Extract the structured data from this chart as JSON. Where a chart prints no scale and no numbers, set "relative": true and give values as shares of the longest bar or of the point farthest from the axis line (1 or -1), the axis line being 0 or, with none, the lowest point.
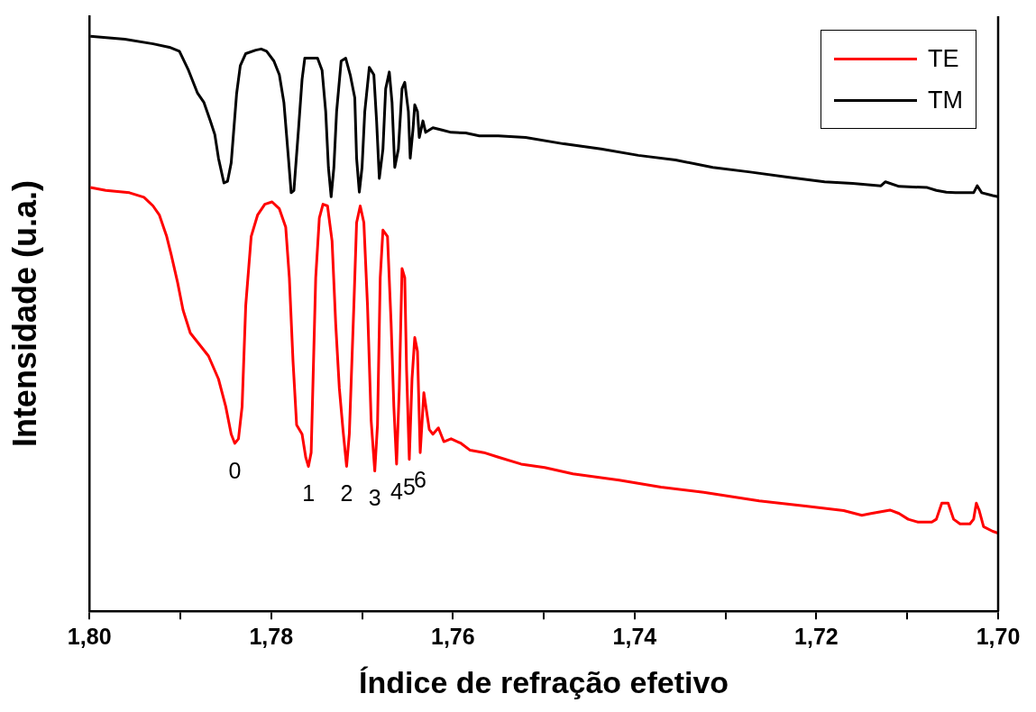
{
  "chart_data": {
    "type": "line",
    "xlabel": "Índice de refração efetivo",
    "ylabel": "Intensidade (u.a.)",
    "relative": true,
    "legend": "top right",
    "grid": false,
    "marker": "none",
    "line_style": "solid",
    "xlim": [
      1.8,
      1.7
    ],
    "xticks": [
      {
        "value": 1.8,
        "label": "1,80"
      },
      {
        "value": 1.79,
        "label": null
      },
      {
        "value": 1.78,
        "label": "1,78"
      },
      {
        "value": 1.77,
        "label": null
      },
      {
        "value": 1.76,
        "label": "1,76"
      },
      {
        "value": 1.75,
        "label": null
      },
      {
        "value": 1.74,
        "label": "1,74"
      },
      {
        "value": 1.73,
        "label": null
      },
      {
        "value": 1.72,
        "label": "1,72"
      },
      {
        "value": 1.71,
        "label": null
      },
      {
        "value": 1.7,
        "label": "1,70"
      }
    ],
    "series": [
      {
        "name": "TE",
        "color": "#ff0000",
        "x": [
          1.7999,
          1.7982,
          1.7956,
          1.794,
          1.793,
          1.7923,
          1.7915,
          1.791,
          1.7903,
          1.7897,
          1.7889,
          1.7877,
          1.7869,
          1.7858,
          1.785,
          1.7844,
          1.784,
          1.7836,
          1.7832,
          1.7828,
          1.7822,
          1.7815,
          1.7807,
          1.7799,
          1.7791,
          1.7784,
          1.778,
          1.7776,
          1.7772,
          1.7766,
          1.7762,
          1.7759,
          1.7756,
          1.7751,
          1.7747,
          1.7743,
          1.7738,
          1.7733,
          1.7729,
          1.7725,
          1.7721,
          1.7717,
          1.7714,
          1.7709,
          1.7706,
          1.7702,
          1.7698,
          1.7694,
          1.769,
          1.7686,
          1.7683,
          1.768,
          1.7677,
          1.7672,
          1.7668,
          1.7665,
          1.7662,
          1.7659,
          1.7656,
          1.7653,
          1.7651,
          1.7648,
          1.7645,
          1.7642,
          1.7639,
          1.7636,
          1.7632,
          1.7629,
          1.7626,
          1.7622,
          1.7616,
          1.761,
          1.7602,
          1.7591,
          1.7581,
          1.7566,
          1.755,
          1.7525,
          1.7499,
          1.7468,
          1.7417,
          1.7371,
          1.7324,
          1.7263,
          1.7212,
          1.717,
          1.715,
          1.714,
          1.7119,
          1.7109,
          1.7099,
          1.7088,
          1.7073,
          1.7068,
          1.7062,
          1.7055,
          1.7049,
          1.7042,
          1.7031,
          1.7027,
          1.7024,
          1.7021,
          1.7016,
          1.7006,
          1.7
        ],
        "values": [
          0.737,
          0.732,
          0.728,
          0.72,
          0.705,
          0.689,
          0.652,
          0.62,
          0.572,
          0.524,
          0.484,
          0.46,
          0.444,
          0.404,
          0.356,
          0.308,
          0.292,
          0.3,
          0.356,
          0.532,
          0.652,
          0.689,
          0.708,
          0.712,
          0.7,
          0.668,
          0.58,
          0.436,
          0.324,
          0.308,
          0.268,
          0.252,
          0.276,
          0.58,
          0.684,
          0.708,
          0.705,
          0.644,
          0.5,
          0.388,
          0.316,
          0.252,
          0.308,
          0.532,
          0.676,
          0.705,
          0.676,
          0.532,
          0.332,
          0.244,
          0.324,
          0.58,
          0.663,
          0.652,
          0.5,
          0.356,
          0.256,
          0.388,
          0.596,
          0.58,
          0.42,
          0.264,
          0.404,
          0.476,
          0.452,
          0.276,
          0.38,
          0.348,
          0.316,
          0.308,
          0.319,
          0.295,
          0.3,
          0.292,
          0.28,
          0.276,
          0.268,
          0.256,
          0.25,
          0.239,
          0.228,
          0.216,
          0.207,
          0.192,
          0.183,
          0.175,
          0.167,
          0.17,
          0.176,
          0.17,
          0.16,
          0.155,
          0.155,
          0.16,
          0.188,
          0.188,
          0.16,
          0.152,
          0.152,
          0.16,
          0.188,
          0.176,
          0.147,
          0.139,
          0.136
        ]
      },
      {
        "name": "TM",
        "color": "#000000",
        "x": [
          1.7999,
          1.7961,
          1.793,
          1.7912,
          1.7901,
          1.7891,
          1.7881,
          1.7874,
          1.7867,
          1.7862,
          1.7858,
          1.7852,
          1.7848,
          1.7844,
          1.7838,
          1.7834,
          1.7828,
          1.7817,
          1.7811,
          1.7805,
          1.7797,
          1.7791,
          1.7786,
          1.7781,
          1.7778,
          1.7775,
          1.777,
          1.7766,
          1.7763,
          1.7749,
          1.7744,
          1.774,
          1.7737,
          1.7734,
          1.7731,
          1.7728,
          1.7723,
          1.7718,
          1.7713,
          1.7708,
          1.7706,
          1.7703,
          1.77,
          1.7697,
          1.7692,
          1.7687,
          1.7684,
          1.7681,
          1.7677,
          1.7674,
          1.767,
          1.7667,
          1.7664,
          1.766,
          1.7656,
          1.7653,
          1.7649,
          1.7647,
          1.7644,
          1.7642,
          1.7639,
          1.7637,
          1.7633,
          1.763,
          1.7622,
          1.7612,
          1.7602,
          1.7586,
          1.7571,
          1.755,
          1.752,
          1.7478,
          1.7437,
          1.7396,
          1.7355,
          1.7314,
          1.7273,
          1.7232,
          1.7191,
          1.716,
          1.7129,
          1.7124,
          1.7109,
          1.7078,
          1.7068,
          1.7057,
          1.7047,
          1.7027,
          1.7023,
          1.7018,
          1.7006,
          1.7
        ],
        "values": [
          1.0,
          0.995,
          0.987,
          0.981,
          0.974,
          0.941,
          0.901,
          0.885,
          0.853,
          0.829,
          0.788,
          0.745,
          0.748,
          0.78,
          0.901,
          0.949,
          0.97,
          0.976,
          0.978,
          0.974,
          0.957,
          0.933,
          0.885,
          0.788,
          0.728,
          0.732,
          0.837,
          0.925,
          0.962,
          0.962,
          0.941,
          0.869,
          0.772,
          0.721,
          0.772,
          0.869,
          0.957,
          0.962,
          0.933,
          0.893,
          0.788,
          0.729,
          0.772,
          0.869,
          0.946,
          0.933,
          0.853,
          0.753,
          0.804,
          0.909,
          0.938,
          0.885,
          0.772,
          0.804,
          0.909,
          0.92,
          0.869,
          0.788,
          0.837,
          0.881,
          0.869,
          0.824,
          0.853,
          0.833,
          0.841,
          0.837,
          0.833,
          0.832,
          0.827,
          0.827,
          0.824,
          0.813,
          0.804,
          0.793,
          0.785,
          0.772,
          0.764,
          0.755,
          0.747,
          0.744,
          0.74,
          0.747,
          0.739,
          0.737,
          0.732,
          0.729,
          0.728,
          0.728,
          0.74,
          0.728,
          0.723,
          0.721
        ]
      }
    ],
    "annotations": [
      {
        "text": "0",
        "x": 1.784,
        "y": 0.292
      },
      {
        "text": "1",
        "x": 1.7759,
        "y": 0.252
      },
      {
        "text": "2",
        "x": 1.7717,
        "y": 0.252
      },
      {
        "text": "3",
        "x": 1.7686,
        "y": 0.244
      },
      {
        "text": "4",
        "x": 1.7662,
        "y": 0.256
      },
      {
        "text": "5",
        "x": 1.7648,
        "y": 0.264
      },
      {
        "text": "6",
        "x": 1.7636,
        "y": 0.276
      }
    ]
  }
}
